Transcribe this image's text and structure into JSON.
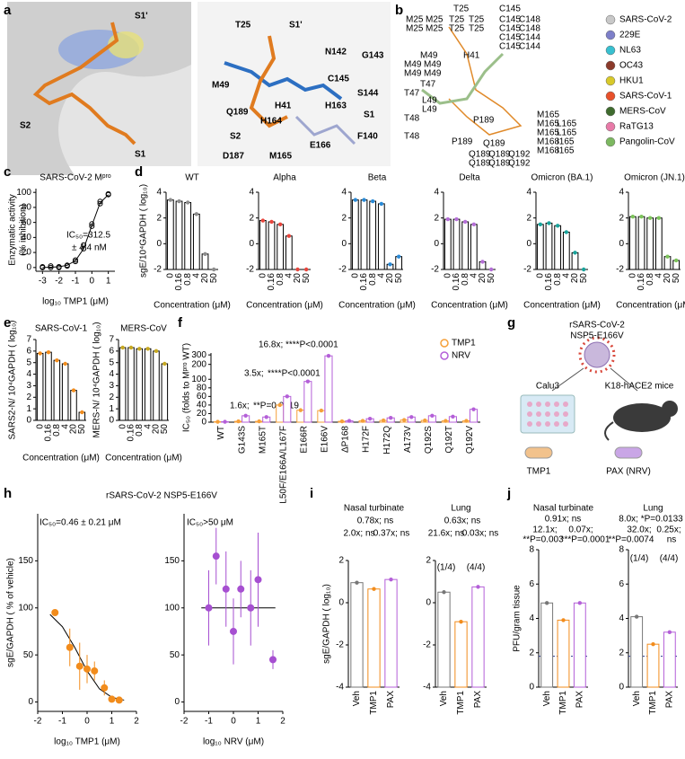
{
  "panel_labels": [
    "a",
    "b",
    "c",
    "d",
    "e",
    "f",
    "g",
    "h",
    "i",
    "j"
  ],
  "structure_a": {
    "labels": [
      {
        "text": "S1'",
        "color": "#d9472b"
      },
      {
        "text": "S2",
        "color": "#d9472b"
      },
      {
        "text": "S1",
        "color": "#d9472b"
      },
      {
        "text": "S1'",
        "color": "#d9472b"
      },
      {
        "text": "T25",
        "color": "#000"
      },
      {
        "text": "N142",
        "color": "#000"
      },
      {
        "text": "G143",
        "color": "#000"
      },
      {
        "text": "M49",
        "color": "#000"
      },
      {
        "text": "C145",
        "color": "#000"
      },
      {
        "text": "S144",
        "color": "#000"
      },
      {
        "text": "Q189",
        "color": "#000"
      },
      {
        "text": "H41",
        "color": "#000"
      },
      {
        "text": "H163",
        "color": "#000"
      },
      {
        "text": "S1",
        "color": "#d9472b"
      },
      {
        "text": "H164",
        "color": "#000"
      },
      {
        "text": "S2",
        "color": "#d9472b"
      },
      {
        "text": "F140",
        "color": "#000"
      },
      {
        "text": "D187",
        "color": "#000"
      },
      {
        "text": "M165",
        "color": "#000"
      },
      {
        "text": "E166",
        "color": "#000"
      }
    ]
  },
  "structure_b": {
    "legend": [
      {
        "name": "SARS-CoV-2",
        "color": "#c8c8c8"
      },
      {
        "name": "229E",
        "color": "#7d7fc9"
      },
      {
        "name": "NL63",
        "color": "#38c0d0"
      },
      {
        "name": "OC43",
        "color": "#8b3a2b"
      },
      {
        "name": "HKU1",
        "color": "#d8c92a"
      },
      {
        "name": "SARS-CoV-1",
        "color": "#e8502a"
      },
      {
        "name": "MERS-CoV",
        "color": "#3f6b2e"
      },
      {
        "name": "RaTG13",
        "color": "#e87aa8"
      },
      {
        "name": "Pangolin-CoV",
        "color": "#7cb860"
      }
    ],
    "residue_labels": [
      [
        {
          "text": "T25",
          "color": "#999"
        }
      ],
      [
        {
          "text": "M25",
          "color": "#8b3a2b"
        },
        {
          "text": "M25",
          "color": "#3f6b2e"
        }
      ],
      [
        {
          "text": "M25",
          "color": "#c9b91a"
        },
        {
          "text": "M25",
          "color": "#7cb860"
        }
      ],
      [
        {
          "text": "T25",
          "color": "#e8502a"
        },
        {
          "text": "T25",
          "color": "#38c0d0"
        }
      ],
      [
        {
          "text": "T25",
          "color": "#e87aa8"
        },
        {
          "text": "T25",
          "color": "#7d7fc9"
        }
      ],
      [
        {
          "text": "C145",
          "color": "#999"
        }
      ],
      [
        {
          "text": "C145",
          "color": "#e8502a"
        },
        {
          "text": "C148",
          "color": "#3f6b2e"
        }
      ],
      [
        {
          "text": "C145",
          "color": "#8b3a2b"
        },
        {
          "text": "C148",
          "color": "#7cb860"
        }
      ],
      [
        {
          "text": "C145",
          "color": "#999"
        },
        {
          "text": "C144",
          "color": "#38c0d0"
        }
      ],
      [
        {
          "text": "C145",
          "color": "#c9b91a"
        },
        {
          "text": "C144",
          "color": "#7d7fc9"
        }
      ],
      [
        {
          "text": "H41",
          "color": "#000"
        }
      ],
      [
        {
          "text": "M49",
          "color": "#999"
        }
      ],
      [
        {
          "text": "M49",
          "color": "#e8502a"
        },
        {
          "text": "M49",
          "color": "#8b3a2b"
        }
      ],
      [
        {
          "text": "M49",
          "color": "#e87aa8"
        },
        {
          "text": "M49",
          "color": "#c9b91a"
        }
      ],
      [
        {
          "text": "T47",
          "color": "#7d7fc9"
        }
      ],
      [
        {
          "text": "T47",
          "color": "#38c0d0"
        }
      ],
      [
        {
          "text": "L49",
          "color": "#3f6b2e"
        }
      ],
      [
        {
          "text": "L49",
          "color": "#7cb860"
        }
      ],
      [
        {
          "text": "T48",
          "color": "#7d7fc9"
        }
      ],
      [
        {
          "text": "T48",
          "color": "#38c0d0"
        }
      ],
      [
        {
          "text": "P189",
          "color": "#38c0d0"
        }
      ],
      [
        {
          "text": "P189",
          "color": "#7d7fc9"
        }
      ],
      [
        {
          "text": "M165",
          "color": "#999"
        }
      ],
      [
        {
          "text": "M165",
          "color": "#e8502a"
        },
        {
          "text": "L165",
          "color": "#8b3a2b"
        }
      ],
      [
        {
          "text": "M165",
          "color": "#e87aa8"
        },
        {
          "text": "L165",
          "color": "#c9b91a"
        }
      ],
      [
        {
          "text": "M168",
          "color": "#3f6b2e"
        },
        {
          "text": "I165",
          "color": "#38c0d0"
        }
      ],
      [
        {
          "text": "M168",
          "color": "#7cb860"
        },
        {
          "text": "I165",
          "color": "#7d7fc9"
        }
      ],
      [
        {
          "text": "Q189",
          "color": "#999"
        }
      ],
      [
        {
          "text": "Q189",
          "color": "#e8502a"
        },
        {
          "text": "Q189",
          "color": "#8b3a2b"
        },
        {
          "text": "Q192",
          "color": "#3f6b2e"
        }
      ],
      [
        {
          "text": "Q189",
          "color": "#e87aa8"
        },
        {
          "text": "Q189",
          "color": "#c9b91a"
        },
        {
          "text": "Q192",
          "color": "#7cb860"
        }
      ]
    ]
  },
  "schematic_g": {
    "virus": "rSARS-CoV-2",
    "mutant": "NSP5-E166V",
    "cells": "Calu3",
    "mice": "K18-hACE2 mice",
    "drug1": "TMP1",
    "drug2": "PAX (NRV)"
  },
  "chart_data": [
    {
      "type": "scatter",
      "title": "SARS-CoV-2 Mᵖʳᵒ",
      "xlabel": "log₁₀ TMP1 (μM)",
      "ylabel": [
        "Enzymatic activity",
        "(% inhibition)"
      ],
      "xlim": [
        -3.4,
        1.4
      ],
      "xticks": [
        -3,
        -2,
        -1,
        0,
        1
      ],
      "ylim": [
        -5,
        105
      ],
      "yticks": [
        0,
        20,
        40,
        60,
        80,
        100
      ],
      "points": {
        "color": "#000",
        "open": true,
        "x": [
          -3,
          -3,
          -2.5,
          -2.5,
          -2,
          -2,
          -1.5,
          -1.5,
          -1,
          -1,
          -0.5,
          -0.5,
          0,
          0,
          0.5,
          0.5,
          1,
          1
        ],
        "y": [
          0,
          1,
          0,
          2,
          1,
          0,
          3,
          2,
          8,
          10,
          25,
          30,
          55,
          58,
          85,
          88,
          98,
          97
        ]
      },
      "curve": {
        "x": [
          -3,
          -2,
          -1.5,
          -1,
          -0.5,
          0,
          0.5,
          1
        ],
        "y": [
          0,
          1,
          3,
          9,
          25,
          56,
          86,
          97
        ]
      },
      "annotations": [
        {
          "text": "IC₅₀=312.5",
          "color": "#000"
        },
        {
          "text": "± 4.4 nM",
          "color": "#000"
        }
      ]
    },
    {
      "type": "bar",
      "title": "WT",
      "xlabel": "Concentration (μM)",
      "ylabel": "sgE/10⁴GAPDH ( log₁₀)",
      "categories": [
        "0",
        "0.16",
        "0.8",
        "4",
        "20",
        "50"
      ],
      "values": [
        3.4,
        3.3,
        3.2,
        2.3,
        -0.8,
        -2
      ],
      "color": "#8c8c8c",
      "ylim": [
        -2,
        4
      ],
      "yticks": [
        -2,
        0,
        2,
        4
      ]
    },
    {
      "type": "bar",
      "title": "Alpha",
      "xlabel": "Concentration (μM)",
      "categories": [
        "0",
        "0.16",
        "0.8",
        "4",
        "20",
        "50"
      ],
      "values": [
        1.8,
        1.7,
        1.5,
        0.6,
        -2,
        -2
      ],
      "color": "#e8453c",
      "ylim": [
        -2,
        4
      ],
      "yticks": [
        -2,
        0,
        2,
        4
      ]
    },
    {
      "type": "bar",
      "title": "Beta",
      "xlabel": "Concentration (μM)",
      "categories": [
        "0",
        "0.16",
        "0.8",
        "4",
        "20",
        "50"
      ],
      "values": [
        3.4,
        3.4,
        3.3,
        3.1,
        -1.6,
        -1.0
      ],
      "color": "#2a8ad6",
      "ylim": [
        -2,
        4
      ],
      "yticks": [
        -2,
        0,
        2,
        4
      ]
    },
    {
      "type": "bar",
      "title": "Delta",
      "xlabel": "Concentration (μM)",
      "categories": [
        "0",
        "0.16",
        "0.8",
        "4",
        "20",
        "50"
      ],
      "values": [
        1.9,
        1.9,
        1.7,
        1.5,
        -1.4,
        -2
      ],
      "color": "#b46ed6",
      "ylim": [
        -2,
        4
      ],
      "yticks": [
        -2,
        0,
        2,
        4
      ]
    },
    {
      "type": "bar",
      "title": "Omicron (BA.1)",
      "xlabel": "Concentration (μM)",
      "categories": [
        "0",
        "0.16",
        "0.8",
        "4",
        "20",
        "50"
      ],
      "values": [
        1.5,
        1.6,
        1.4,
        0.9,
        -0.7,
        -2
      ],
      "color": "#1aa39b",
      "ylim": [
        -2,
        4
      ],
      "yticks": [
        -2,
        0,
        2,
        4
      ]
    },
    {
      "type": "bar",
      "title": "Omicron (JN.1)",
      "xlabel": "Concentration (μM)",
      "categories": [
        "0",
        "0.16",
        "0.8",
        "4",
        "20",
        "50"
      ],
      "values": [
        2.1,
        2.1,
        2.0,
        2.0,
        -1.0,
        -1.3
      ],
      "color": "#7cc35a",
      "ylim": [
        -2,
        4
      ],
      "yticks": [
        -2,
        0,
        2,
        4
      ]
    },
    {
      "type": "bar",
      "title": "SARS-CoV-1",
      "xlabel": "Concentration (μM)",
      "ylabel": "SARS2-N/ 10⁴GAPDH ( log₁₀)",
      "categories": [
        "0",
        "0.16",
        "0.8",
        "4",
        "20",
        "50"
      ],
      "values": [
        5.8,
        5.9,
        5.2,
        4.9,
        2.6,
        0.7
      ],
      "color": "#f28c1c",
      "ylim": [
        0,
        7
      ],
      "yticks": [
        0,
        1,
        2,
        3,
        4,
        5,
        6,
        7
      ]
    },
    {
      "type": "bar",
      "title": "MERS-CoV",
      "xlabel": "Concentration (μM)",
      "ylabel": "MERS-N/ 10⁴GAPDH ( log₁₀)",
      "categories": [
        "0",
        "0.16",
        "0.8",
        "4",
        "20",
        "50"
      ],
      "values": [
        6.3,
        6.3,
        6.2,
        6.2,
        6.0,
        4.9
      ],
      "color": "#c6a821",
      "ylim": [
        0,
        7
      ],
      "yticks": [
        0,
        1,
        2,
        3,
        4,
        5,
        6,
        7
      ]
    },
    {
      "type": "bar",
      "ylabel": "IC₅₀ (folds to Mᵖʳᵒ WT)",
      "categories": [
        "WT",
        "G143S",
        "M165T",
        "L50F/E166A/L167F",
        "E166R",
        "E166V",
        "ΔP168",
        "H172F",
        "H172Q",
        "A173V",
        "Q192S",
        "Q192T",
        "Q192V"
      ],
      "series": [
        {
          "name": "TMP1",
          "color": "#f5a03a",
          "values": [
            1,
            2,
            2,
            40,
            28,
            27,
            2,
            3,
            4,
            5,
            4,
            3,
            3
          ]
        },
        {
          "name": "NRV",
          "color": "#b45fd8",
          "values": [
            1,
            15,
            12,
            60,
            95,
            290,
            3,
            8,
            10,
            12,
            15,
            13,
            30
          ]
        }
      ],
      "ylim": [
        0,
        320
      ],
      "yticks": [
        0,
        20,
        40,
        60,
        80,
        100,
        200,
        300
      ],
      "ybreak": 100,
      "annotations": [
        {
          "text": "1.6x;",
          "color": "#d62728"
        },
        {
          "text": "**P=0.0019",
          "color": "#000"
        },
        {
          "text": "3.5x;",
          "color": "#d62728"
        },
        {
          "text": "****P<0.0001",
          "color": "#000"
        },
        {
          "text": "16.8x;",
          "color": "#d62728"
        },
        {
          "text": "****P<0.0001",
          "color": "#000"
        }
      ]
    },
    {
      "type": "scatter",
      "suptitle": "rSARS-CoV-2 NSP5-E166V",
      "xlabel": "log₁₀ TMP1 (μM)",
      "ylabel": "sgE/GAPDH ( % of vehicle)",
      "xlim": [
        -2,
        2
      ],
      "xticks": [
        -2,
        -1,
        0,
        1,
        2
      ],
      "ylim": [
        -10,
        200
      ],
      "yticks": [
        0,
        50,
        100,
        150
      ],
      "points": {
        "color": "#f28c1c",
        "x": [
          -1.3,
          -0.7,
          -0.3,
          0,
          0.3,
          0.7,
          1.0,
          1.3
        ],
        "y": [
          95,
          58,
          38,
          35,
          33,
          15,
          3,
          2
        ],
        "err": [
          3,
          20,
          25,
          15,
          10,
          8,
          3,
          2
        ]
      },
      "curve": {
        "x": [
          -1.5,
          -1,
          -0.5,
          0,
          0.5,
          1,
          1.5
        ],
        "y": [
          93,
          80,
          58,
          33,
          14,
          5,
          2
        ]
      },
      "annotations": [
        {
          "text": "IC₅₀=0.46 ± 0.21 μM",
          "color": "#000"
        }
      ]
    },
    {
      "type": "scatter",
      "xlabel": "log₁₀ NRV (μM)",
      "xlim": [
        -2,
        2
      ],
      "xticks": [
        -2,
        -1,
        0,
        1,
        2
      ],
      "ylim": [
        -10,
        200
      ],
      "yticks": [
        0,
        50,
        100,
        150
      ],
      "points": {
        "color": "#a64fd1",
        "x": [
          -1,
          -0.7,
          -0.3,
          0,
          0.3,
          0.7,
          1.0,
          1.6
        ],
        "y": [
          100,
          155,
          120,
          75,
          120,
          100,
          130,
          45
        ],
        "err": [
          40,
          30,
          40,
          35,
          30,
          40,
          50,
          10
        ]
      },
      "curve": {
        "x": [
          -1.3,
          1.7
        ],
        "y": [
          100,
          100
        ]
      },
      "annotations": [
        {
          "text": "IC₅₀>50 μM",
          "color": "#000"
        }
      ]
    },
    {
      "type": "bar",
      "title": "Nasal turbinate",
      "ylabel": "sgE/GAPDH ( log₁₀)",
      "categories": [
        "Veh",
        "TMP1",
        "PAX"
      ],
      "values": [
        0.95,
        0.65,
        1.1
      ],
      "colors": [
        "#777777",
        "#f28c1c",
        "#b45fd8"
      ],
      "ylim": [
        -4,
        2
      ],
      "yticks": [
        -4,
        -2,
        0,
        2
      ],
      "annotations": [
        {
          "text": "0.78x; ns",
          "color": "#b45fd8"
        },
        {
          "text": "2.0x; ns",
          "color": "#f28c1c"
        },
        {
          "text": "0.37x; ns",
          "color": "#d62728"
        }
      ]
    },
    {
      "type": "bar",
      "title": "Lung",
      "categories": [
        "Veh",
        "TMP1",
        "PAX"
      ],
      "values": [
        0.5,
        -0.9,
        0.75
      ],
      "colors": [
        "#777777",
        "#f28c1c",
        "#b45fd8"
      ],
      "ylim": [
        -4,
        2
      ],
      "yticks": [
        -4,
        -2,
        0,
        2
      ],
      "annotations": [
        {
          "text": "0.63x; ns",
          "color": "#b45fd8"
        },
        {
          "text": "21.6x; ns",
          "color": "#f28c1c"
        },
        {
          "text": "0.03x; ns",
          "color": "#d62728"
        },
        {
          "text": "(1/4)",
          "color": "#f28c1c"
        },
        {
          "text": "(4/4)",
          "color": "#b45fd8"
        }
      ]
    },
    {
      "type": "bar",
      "title": "Nasal turbinate",
      "ylabel": "PFU/gram tissue",
      "categories": [
        "Veh",
        "TMP1",
        "PAX"
      ],
      "values": [
        4.9,
        3.9,
        4.9
      ],
      "colors": [
        "#777777",
        "#f28c1c",
        "#b45fd8"
      ],
      "ylim": [
        0,
        8
      ],
      "yticks": [
        0,
        2,
        4,
        6,
        8
      ],
      "lod": 1.8,
      "annotations": [
        {
          "text": "0.91x; ns",
          "color": "#b45fd8"
        },
        {
          "text": "12.1x;",
          "color": "#f28c1c"
        },
        {
          "text": "0.07x;",
          "color": "#d62728"
        },
        {
          "text": "**P=0.003",
          "color": "#000"
        },
        {
          "text": "***P=0.0001",
          "color": "#000"
        }
      ]
    },
    {
      "type": "bar",
      "title": "Lung",
      "categories": [
        "Veh",
        "TMP1",
        "PAX"
      ],
      "values": [
        4.1,
        2.5,
        3.2
      ],
      "colors": [
        "#777777",
        "#f28c1c",
        "#b45fd8"
      ],
      "ylim": [
        0,
        8
      ],
      "yticks": [
        0,
        2,
        4,
        6,
        8
      ],
      "lod": 1.8,
      "annotations": [
        {
          "text": "8.0x; *P=0.0133",
          "color": "#b45fd8"
        },
        {
          "text": "32.0x;",
          "color": "#f28c1c"
        },
        {
          "text": "0.25x;",
          "color": "#d62728"
        },
        {
          "text": "**P=0.0074",
          "color": "#000"
        },
        {
          "text": "ns",
          "color": "#000"
        },
        {
          "text": "(1/4)",
          "color": "#f28c1c"
        },
        {
          "text": "(4/4)",
          "color": "#b45fd8"
        }
      ]
    }
  ]
}
